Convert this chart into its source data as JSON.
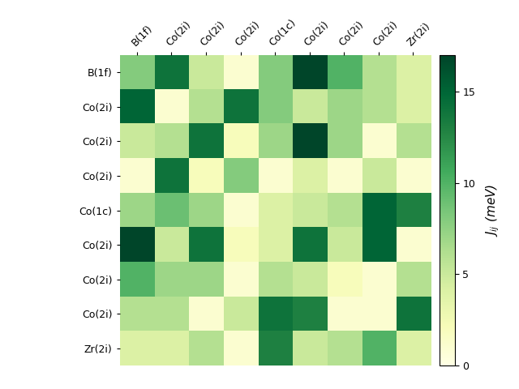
{
  "labels": [
    "B(1f)",
    "Co(2i)",
    "Co(2i)",
    "Co(2i)",
    "Co(1c)",
    "Co(2i)",
    "Co(2i)",
    "Co(2i)",
    "Zr(2i)"
  ],
  "matrix": [
    [
      8,
      14,
      5,
      1,
      8,
      17,
      10,
      6,
      4
    ],
    [
      15,
      1,
      6,
      14,
      8,
      5,
      7,
      6,
      4
    ],
    [
      5,
      6,
      14,
      2,
      7,
      17,
      7,
      1,
      6
    ],
    [
      1,
      14,
      2,
      8,
      1,
      4,
      1,
      5,
      1
    ],
    [
      7,
      9,
      7,
      1,
      4,
      5,
      6,
      15,
      13
    ],
    [
      17,
      5,
      14,
      2,
      4,
      14,
      5,
      15,
      1
    ],
    [
      10,
      7,
      7,
      1,
      6,
      5,
      2,
      1,
      6
    ],
    [
      6,
      6,
      1,
      5,
      14,
      13,
      1,
      1,
      14
    ],
    [
      4,
      4,
      6,
      1,
      13,
      5,
      6,
      10,
      4
    ]
  ],
  "vmin": 0,
  "vmax": 17,
  "cbar_label": "$J_{ij}$ (meV)",
  "cbar_ticks": [
    0,
    5,
    10,
    15
  ],
  "colormap": "YlGn",
  "figsize": [
    6.4,
    4.8
  ],
  "dpi": 100
}
